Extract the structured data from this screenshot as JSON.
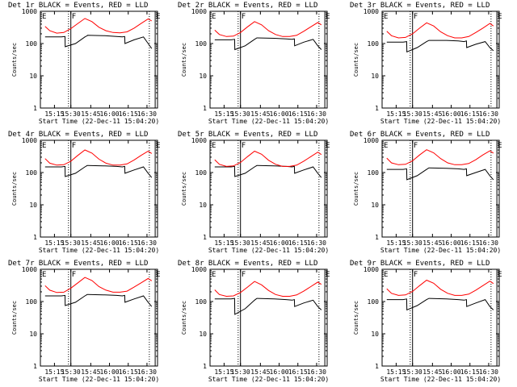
{
  "figure": {
    "ylabel": "Counts/sec",
    "xlabel": "Start Time (22-Dec-11 15:04:20)",
    "xticks": [
      "15:15",
      "15:30",
      "15:45",
      "16:00",
      "16:15",
      "16:30"
    ],
    "yticks": [
      "1",
      "10",
      "100",
      "1000"
    ],
    "marker_labels": [
      "E",
      "F",
      "E"
    ],
    "colors": {
      "events": "#000000",
      "lld": "#ff0000"
    }
  },
  "chart_data": [
    {
      "type": "line",
      "title": "Det 1r  BLACK = Events, RED = LLD",
      "ylim": [
        1,
        1000
      ],
      "yscale": "log",
      "series": [
        {
          "name": "Events",
          "color": "#000000",
          "x": [
            4,
            10,
            18,
            21,
            21.2,
            30,
            38,
            40,
            40.2,
            55,
            65,
            70,
            72,
            72.2,
            80,
            88,
            92,
            95
          ],
          "y": [
            160,
            160,
            160,
            165,
            80,
            100,
            160,
            175,
            180,
            175,
            165,
            160,
            165,
            100,
            130,
            160,
            100,
            70
          ]
        },
        {
          "name": "LLD",
          "color": "#ff0000",
          "x": [
            4,
            8,
            14,
            20,
            26,
            32,
            38,
            44,
            50,
            56,
            62,
            68,
            74,
            80,
            86,
            92,
            95
          ],
          "y": [
            340,
            250,
            210,
            220,
            290,
            420,
            600,
            480,
            320,
            250,
            220,
            215,
            230,
            300,
            420,
            580,
            500
          ]
        }
      ]
    },
    {
      "type": "line",
      "title": "Det 2r  BLACK = Events, RED = LLD",
      "ylim": [
        1,
        1000
      ],
      "yscale": "log",
      "series": [
        {
          "name": "Events",
          "color": "#000000",
          "x": [
            4,
            10,
            18,
            21,
            21.2,
            30,
            38,
            40,
            40.2,
            55,
            65,
            70,
            72,
            72.2,
            80,
            88,
            92,
            95
          ],
          "y": [
            130,
            130,
            130,
            135,
            65,
            85,
            135,
            150,
            150,
            145,
            140,
            135,
            140,
            85,
            110,
            135,
            85,
            65
          ]
        },
        {
          "name": "LLD",
          "color": "#ff0000",
          "x": [
            4,
            8,
            14,
            20,
            26,
            32,
            38,
            44,
            50,
            56,
            62,
            68,
            74,
            80,
            86,
            92,
            95
          ],
          "y": [
            260,
            190,
            165,
            170,
            220,
            330,
            480,
            380,
            250,
            190,
            165,
            165,
            180,
            240,
            330,
            450,
            380
          ]
        }
      ]
    },
    {
      "type": "line",
      "title": "Det 3r  BLACK = Events, RED = LLD",
      "ylim": [
        1,
        1000
      ],
      "yscale": "log",
      "series": [
        {
          "name": "Events",
          "color": "#000000",
          "x": [
            4,
            10,
            18,
            21,
            21.2,
            30,
            38,
            40,
            40.2,
            55,
            65,
            70,
            72,
            72.2,
            80,
            88,
            92,
            95
          ],
          "y": [
            110,
            110,
            110,
            115,
            55,
            75,
            115,
            125,
            125,
            125,
            120,
            115,
            120,
            75,
            95,
            115,
            75,
            60
          ]
        },
        {
          "name": "LLD",
          "color": "#ff0000",
          "x": [
            4,
            8,
            14,
            20,
            26,
            32,
            38,
            44,
            50,
            56,
            62,
            68,
            74,
            80,
            86,
            92,
            95
          ],
          "y": [
            240,
            175,
            150,
            155,
            200,
            300,
            440,
            350,
            230,
            175,
            150,
            150,
            165,
            220,
            300,
            420,
            350
          ]
        }
      ]
    },
    {
      "type": "line",
      "title": "Det 4r  BLACK = Events, RED = LLD",
      "ylim": [
        1,
        1000
      ],
      "yscale": "log",
      "series": [
        {
          "name": "Events",
          "color": "#000000",
          "x": [
            4,
            10,
            18,
            21,
            21.2,
            30,
            38,
            40,
            40.2,
            55,
            65,
            70,
            72,
            72.2,
            80,
            88,
            92,
            95
          ],
          "y": [
            150,
            150,
            150,
            155,
            75,
            95,
            150,
            165,
            165,
            160,
            155,
            150,
            155,
            95,
            120,
            150,
            95,
            70
          ]
        },
        {
          "name": "LLD",
          "color": "#ff0000",
          "x": [
            4,
            8,
            14,
            20,
            26,
            32,
            38,
            44,
            50,
            56,
            62,
            68,
            74,
            80,
            86,
            92,
            95
          ],
          "y": [
            270,
            195,
            170,
            175,
            225,
            340,
            500,
            400,
            260,
            195,
            170,
            170,
            185,
            245,
            340,
            460,
            390
          ]
        }
      ]
    },
    {
      "type": "line",
      "title": "Det 5r  BLACK = Events, RED = LLD",
      "ylim": [
        1,
        1000
      ],
      "yscale": "log",
      "series": [
        {
          "name": "Events",
          "color": "#000000",
          "x": [
            4,
            10,
            18,
            21,
            21.2,
            30,
            38,
            40,
            40.2,
            55,
            65,
            70,
            72,
            72.2,
            80,
            88,
            92,
            95
          ],
          "y": [
            150,
            150,
            150,
            155,
            75,
            95,
            150,
            165,
            165,
            160,
            155,
            150,
            155,
            95,
            120,
            150,
            95,
            70
          ]
        },
        {
          "name": "LLD",
          "color": "#ff0000",
          "x": [
            4,
            8,
            14,
            20,
            26,
            32,
            38,
            44,
            50,
            56,
            62,
            68,
            74,
            80,
            86,
            92,
            95
          ],
          "y": [
            250,
            180,
            155,
            160,
            205,
            310,
            460,
            370,
            240,
            180,
            155,
            155,
            170,
            225,
            310,
            430,
            360
          ]
        }
      ]
    },
    {
      "type": "line",
      "title": "Det 6r  BLACK = Events, RED = LLD",
      "ylim": [
        1,
        1000
      ],
      "yscale": "log",
      "series": [
        {
          "name": "Events",
          "color": "#000000",
          "x": [
            4,
            10,
            18,
            21,
            21.2,
            30,
            38,
            40,
            40.2,
            55,
            65,
            70,
            72,
            72.2,
            80,
            88,
            92,
            95
          ],
          "y": [
            125,
            125,
            125,
            130,
            60,
            80,
            125,
            140,
            140,
            135,
            130,
            125,
            130,
            80,
            100,
            125,
            80,
            60
          ]
        },
        {
          "name": "LLD",
          "color": "#ff0000",
          "x": [
            4,
            8,
            14,
            20,
            26,
            32,
            38,
            44,
            50,
            56,
            62,
            68,
            74,
            80,
            86,
            92,
            95
          ],
          "y": [
            280,
            200,
            175,
            180,
            230,
            350,
            510,
            410,
            270,
            200,
            175,
            175,
            190,
            250,
            350,
            470,
            400
          ]
        }
      ]
    },
    {
      "type": "line",
      "title": "Det 7r  BLACK = Events, RED = LLD",
      "ylim": [
        1,
        1000
      ],
      "yscale": "log",
      "series": [
        {
          "name": "Events",
          "color": "#000000",
          "x": [
            4,
            10,
            18,
            21,
            21.2,
            30,
            38,
            40,
            40.2,
            55,
            65,
            70,
            72,
            72.2,
            80,
            88,
            92,
            95
          ],
          "y": [
            150,
            150,
            150,
            155,
            75,
            95,
            150,
            165,
            165,
            160,
            155,
            150,
            155,
            95,
            120,
            150,
            95,
            70
          ]
        },
        {
          "name": "LLD",
          "color": "#ff0000",
          "x": [
            4,
            8,
            14,
            20,
            26,
            32,
            38,
            44,
            50,
            56,
            62,
            68,
            74,
            80,
            86,
            92,
            95
          ],
          "y": [
            310,
            225,
            190,
            195,
            260,
            380,
            560,
            450,
            290,
            225,
            195,
            195,
            210,
            280,
            380,
            520,
            440
          ]
        }
      ]
    },
    {
      "type": "line",
      "title": "Det 8r  BLACK = Events, RED = LLD",
      "ylim": [
        1,
        1000
      ],
      "yscale": "log",
      "series": [
        {
          "name": "Events",
          "color": "#000000",
          "x": [
            4,
            10,
            18,
            21,
            21.2,
            30,
            38,
            40,
            40.2,
            55,
            65,
            70,
            72,
            72.2,
            80,
            88,
            92,
            95
          ],
          "y": [
            120,
            120,
            120,
            125,
            40,
            60,
            110,
            125,
            125,
            120,
            115,
            110,
            115,
            70,
            90,
            110,
            70,
            55
          ]
        },
        {
          "name": "LLD",
          "color": "#ff0000",
          "x": [
            4,
            8,
            14,
            20,
            26,
            32,
            38,
            44,
            50,
            56,
            62,
            68,
            74,
            80,
            86,
            92,
            95
          ],
          "y": [
            230,
            165,
            145,
            150,
            190,
            280,
            420,
            330,
            220,
            165,
            145,
            145,
            160,
            210,
            290,
            400,
            340
          ]
        }
      ]
    },
    {
      "type": "line",
      "title": "Det 9r  BLACK = Events, RED = LLD",
      "ylim": [
        1,
        1000
      ],
      "yscale": "log",
      "series": [
        {
          "name": "Events",
          "color": "#000000",
          "x": [
            4,
            10,
            18,
            21,
            21.2,
            30,
            38,
            40,
            40.2,
            55,
            65,
            70,
            72,
            72.2,
            80,
            88,
            92,
            95
          ],
          "y": [
            115,
            115,
            115,
            120,
            55,
            75,
            115,
            125,
            125,
            120,
            115,
            110,
            115,
            70,
            90,
            115,
            70,
            55
          ]
        },
        {
          "name": "LLD",
          "color": "#ff0000",
          "x": [
            4,
            8,
            14,
            20,
            26,
            32,
            38,
            44,
            50,
            56,
            62,
            68,
            74,
            80,
            86,
            92,
            95
          ],
          "y": [
            250,
            180,
            155,
            160,
            205,
            310,
            460,
            370,
            240,
            180,
            155,
            155,
            170,
            225,
            310,
            430,
            360
          ]
        }
      ]
    }
  ]
}
